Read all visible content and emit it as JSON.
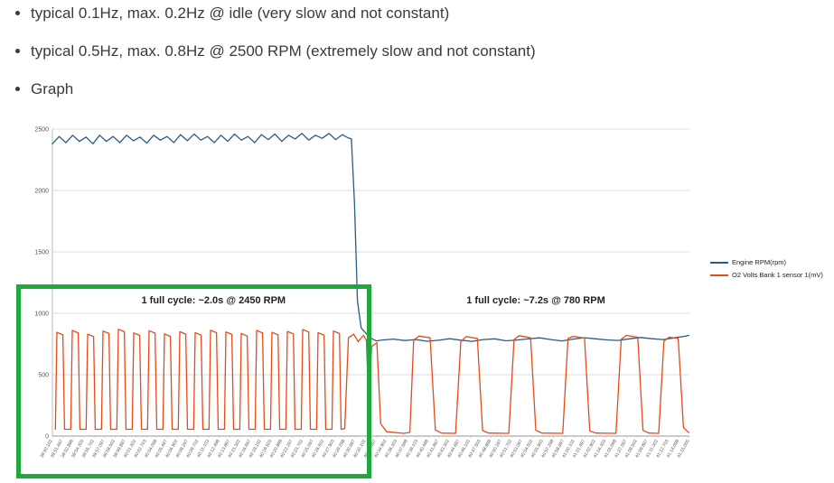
{
  "content": {
    "bullets": [
      "typical 0.1Hz, max. 0.2Hz @ idle (very slow and not constant)",
      "typical 0.5Hz, max. 0.8Hz @ 2500 RPM (extremely slow and not constant)",
      "Graph"
    ]
  },
  "chart_data": {
    "type": "line",
    "title": "",
    "xlabel": "",
    "ylabel": "",
    "ylim": [
      0,
      2500
    ],
    "y_ticks": [
      0,
      500,
      1000,
      1500,
      2000,
      2500
    ],
    "x_range_seconds": [
      0,
      85
    ],
    "grid": "horizontal",
    "legend_position": "right",
    "x_tick_labels": [
      "39:50.102",
      "39:51.497",
      "39:52.898",
      "39:54.303",
      "39:55.702",
      "39:57.097",
      "39:58.502",
      "39:59.897",
      "40:01.302",
      "40:02.703",
      "40:04.098",
      "40:05.497",
      "40:06.902",
      "40:08.297",
      "40:09.702",
      "40:11.103",
      "40:12.498",
      "40:13.897",
      "40:15.302",
      "40:16.697",
      "40:18.102",
      "40:19.503",
      "40:20.898",
      "40:22.297",
      "40:23.702",
      "40:25.097",
      "40:26.502",
      "40:27.903",
      "40:29.298",
      "40:30.697",
      "40:32.102",
      "40:33.497",
      "40:34.902",
      "40:36.303",
      "40:37.698",
      "40:39.103",
      "40:40.498",
      "40:41.897",
      "40:43.302",
      "40:44.697",
      "40:46.102",
      "40:47.503",
      "40:48.898",
      "40:50.297",
      "40:51.702",
      "40:53.097",
      "40:54.502",
      "40:55.903",
      "40:57.298",
      "40:58.697",
      "41:00.102",
      "41:01.497",
      "41:02.902",
      "41:04.303",
      "41:05.698",
      "41:07.097",
      "41:08.502",
      "41:09.897",
      "41:11.302",
      "41:12.703",
      "41:14.098",
      "41:15.005"
    ],
    "annotations": [
      {
        "text": "1 full cycle: ~2.0s @ 2450 RPM",
        "t": 21.5,
        "value": 1080
      },
      {
        "text": "1 full cycle: ~7.2s @ 780 RPM",
        "t": 64.5,
        "value": 1080
      }
    ],
    "highlight_box": {
      "color": "#1fa83c"
    },
    "series": [
      {
        "name": "Engine RPM(rpm)",
        "color": "#265d88",
        "points": [
          [
            0,
            2380
          ],
          [
            0.9,
            2440
          ],
          [
            1.8,
            2390
          ],
          [
            2.7,
            2450
          ],
          [
            3.6,
            2400
          ],
          [
            4.5,
            2435
          ],
          [
            5.4,
            2380
          ],
          [
            6.3,
            2450
          ],
          [
            7.2,
            2400
          ],
          [
            8.1,
            2440
          ],
          [
            9,
            2390
          ],
          [
            9.9,
            2450
          ],
          [
            10.8,
            2405
          ],
          [
            11.7,
            2435
          ],
          [
            12.6,
            2385
          ],
          [
            13.5,
            2450
          ],
          [
            14.4,
            2410
          ],
          [
            15.3,
            2440
          ],
          [
            16.2,
            2390
          ],
          [
            17.1,
            2455
          ],
          [
            18,
            2405
          ],
          [
            18.9,
            2460
          ],
          [
            19.8,
            2410
          ],
          [
            20.7,
            2440
          ],
          [
            21.6,
            2390
          ],
          [
            22.5,
            2450
          ],
          [
            23.4,
            2400
          ],
          [
            24.3,
            2460
          ],
          [
            25.2,
            2410
          ],
          [
            26.1,
            2440
          ],
          [
            27,
            2390
          ],
          [
            27.9,
            2455
          ],
          [
            28.8,
            2415
          ],
          [
            29.7,
            2460
          ],
          [
            30.6,
            2400
          ],
          [
            31.5,
            2450
          ],
          [
            32.4,
            2420
          ],
          [
            33.3,
            2465
          ],
          [
            34.2,
            2410
          ],
          [
            35.1,
            2450
          ],
          [
            36,
            2425
          ],
          [
            36.9,
            2465
          ],
          [
            37.8,
            2415
          ],
          [
            38.7,
            2455
          ],
          [
            39.4,
            2430
          ],
          [
            39.9,
            2420
          ],
          [
            40.3,
            1900
          ],
          [
            40.7,
            1100
          ],
          [
            41.2,
            880
          ],
          [
            41.8,
            840
          ],
          [
            42.4,
            800
          ],
          [
            43.2,
            775
          ],
          [
            44,
            782
          ],
          [
            45.5,
            790
          ],
          [
            47,
            778
          ],
          [
            48.5,
            786
          ],
          [
            50,
            772
          ],
          [
            51.5,
            780
          ],
          [
            53,
            793
          ],
          [
            54.5,
            781
          ],
          [
            56,
            771
          ],
          [
            57.5,
            786
          ],
          [
            59,
            792
          ],
          [
            60.5,
            776
          ],
          [
            62,
            782
          ],
          [
            63.5,
            791
          ],
          [
            65,
            800
          ],
          [
            66.5,
            786
          ],
          [
            68,
            775
          ],
          [
            69.5,
            790
          ],
          [
            71,
            801
          ],
          [
            72.5,
            792
          ],
          [
            74,
            783
          ],
          [
            75.5,
            779
          ],
          [
            77,
            792
          ],
          [
            78.5,
            803
          ],
          [
            80,
            793
          ],
          [
            81.5,
            786
          ],
          [
            83,
            800
          ],
          [
            84.3,
            812
          ],
          [
            84.9,
            820
          ]
        ]
      },
      {
        "name": "O2 Volts Bank 1 sensor 1(mV)",
        "color": "#e64a19",
        "points": [
          [
            0.4,
            55
          ],
          [
            0.6,
            845
          ],
          [
            1.4,
            825
          ],
          [
            1.62,
            55
          ],
          [
            2.45,
            55
          ],
          [
            2.65,
            860
          ],
          [
            3.45,
            840
          ],
          [
            3.67,
            55
          ],
          [
            4.5,
            55
          ],
          [
            4.7,
            830
          ],
          [
            5.5,
            810
          ],
          [
            5.72,
            55
          ],
          [
            6.55,
            55
          ],
          [
            6.75,
            855
          ],
          [
            7.55,
            835
          ],
          [
            7.77,
            55
          ],
          [
            8.6,
            55
          ],
          [
            8.8,
            870
          ],
          [
            9.6,
            850
          ],
          [
            9.82,
            55
          ],
          [
            10.65,
            55
          ],
          [
            10.85,
            840
          ],
          [
            11.65,
            820
          ],
          [
            11.87,
            55
          ],
          [
            12.7,
            55
          ],
          [
            12.9,
            858
          ],
          [
            13.7,
            838
          ],
          [
            13.92,
            55
          ],
          [
            14.75,
            55
          ],
          [
            14.95,
            832
          ],
          [
            15.75,
            812
          ],
          [
            15.97,
            55
          ],
          [
            16.8,
            55
          ],
          [
            17,
            850
          ],
          [
            17.8,
            830
          ],
          [
            18.02,
            55
          ],
          [
            18.85,
            55
          ],
          [
            19.05,
            842
          ],
          [
            19.85,
            822
          ],
          [
            20.07,
            55
          ],
          [
            20.9,
            55
          ],
          [
            21.1,
            862
          ],
          [
            21.9,
            842
          ],
          [
            22.12,
            55
          ],
          [
            22.95,
            55
          ],
          [
            23.15,
            848
          ],
          [
            23.95,
            828
          ],
          [
            24.17,
            55
          ],
          [
            25,
            55
          ],
          [
            25.2,
            835
          ],
          [
            26,
            815
          ],
          [
            26.22,
            55
          ],
          [
            27.05,
            55
          ],
          [
            27.25,
            860
          ],
          [
            28.05,
            840
          ],
          [
            28.27,
            55
          ],
          [
            29.1,
            55
          ],
          [
            29.3,
            845
          ],
          [
            30.1,
            825
          ],
          [
            30.32,
            55
          ],
          [
            31.15,
            55
          ],
          [
            31.35,
            852
          ],
          [
            32.15,
            832
          ],
          [
            32.37,
            55
          ],
          [
            33.2,
            55
          ],
          [
            33.4,
            868
          ],
          [
            34.2,
            848
          ],
          [
            34.42,
            55
          ],
          [
            35.25,
            55
          ],
          [
            35.45,
            842
          ],
          [
            36.25,
            822
          ],
          [
            36.47,
            55
          ],
          [
            37.3,
            55
          ],
          [
            37.5,
            855
          ],
          [
            38.3,
            835
          ],
          [
            38.52,
            55
          ],
          [
            39,
            60
          ],
          [
            39.5,
            800
          ],
          [
            40.2,
            830
          ],
          [
            40.8,
            770
          ],
          [
            41.5,
            820
          ],
          [
            41.9,
            780
          ],
          [
            42.2,
            260
          ],
          [
            42.6,
            730
          ],
          [
            43.3,
            760
          ],
          [
            43.8,
            100
          ],
          [
            44.6,
            35
          ],
          [
            46.9,
            22
          ],
          [
            47.7,
            30
          ],
          [
            48.2,
            780
          ],
          [
            48.9,
            815
          ],
          [
            50.4,
            800
          ],
          [
            51.1,
            50
          ],
          [
            51.9,
            24
          ],
          [
            53.8,
            22
          ],
          [
            54.5,
            770
          ],
          [
            55.2,
            810
          ],
          [
            56.7,
            795
          ],
          [
            57.4,
            45
          ],
          [
            58.2,
            24
          ],
          [
            60.9,
            22
          ],
          [
            61.6,
            785
          ],
          [
            62.3,
            818
          ],
          [
            63.8,
            800
          ],
          [
            64.5,
            48
          ],
          [
            65.3,
            24
          ],
          [
            68.1,
            22
          ],
          [
            68.8,
            795
          ],
          [
            69.5,
            812
          ],
          [
            71,
            798
          ],
          [
            71.7,
            42
          ],
          [
            72.5,
            24
          ],
          [
            75.2,
            22
          ],
          [
            75.9,
            788
          ],
          [
            76.6,
            820
          ],
          [
            78.1,
            805
          ],
          [
            78.8,
            46
          ],
          [
            79.6,
            24
          ],
          [
            80.9,
            22
          ],
          [
            81.6,
            775
          ],
          [
            82.3,
            805
          ],
          [
            83.5,
            795
          ],
          [
            84.2,
            70
          ],
          [
            84.9,
            28
          ]
        ]
      }
    ]
  }
}
